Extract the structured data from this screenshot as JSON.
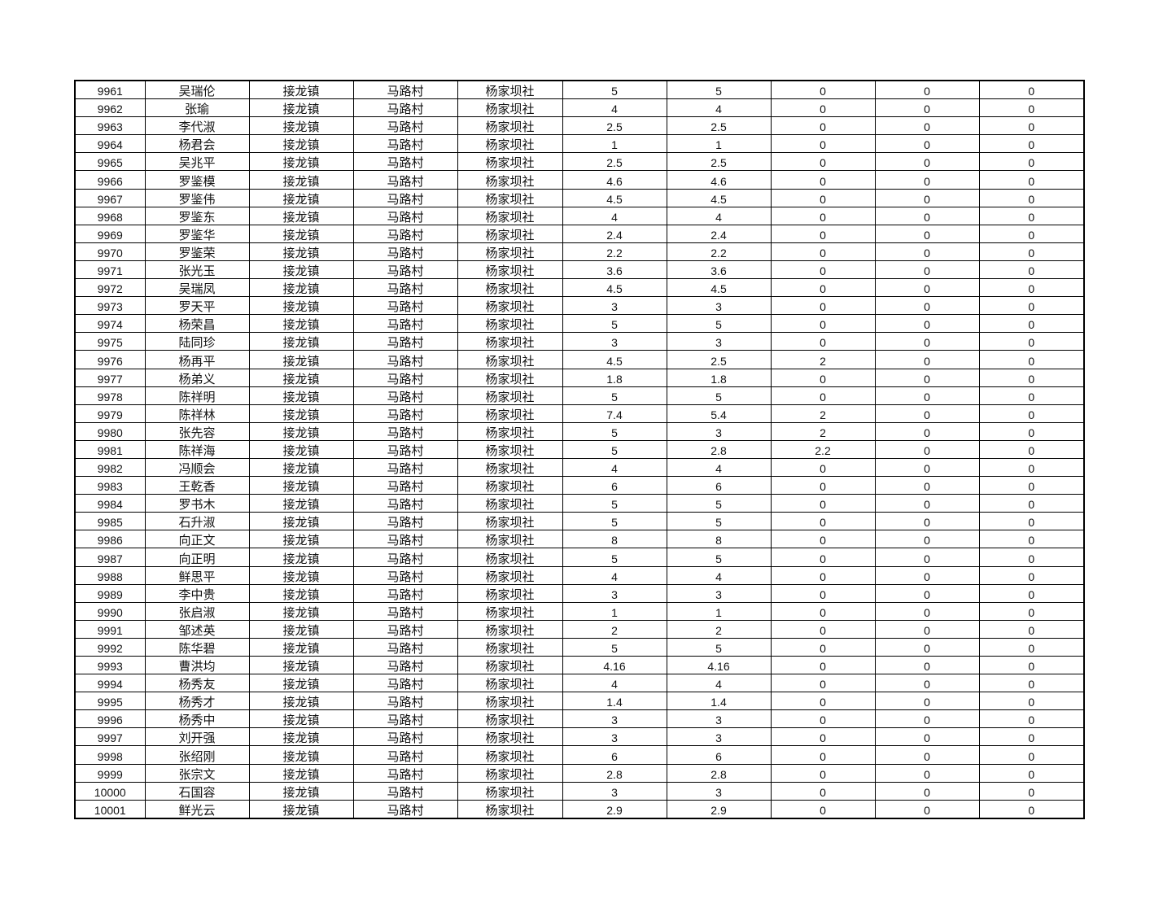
{
  "rows": [
    [
      "9961",
      "吴瑞伦",
      "接龙镇",
      "马路村",
      "杨家坝社",
      "5",
      "5",
      "0",
      "0",
      "0"
    ],
    [
      "9962",
      "张瑜",
      "接龙镇",
      "马路村",
      "杨家坝社",
      "4",
      "4",
      "0",
      "0",
      "0"
    ],
    [
      "9963",
      "李代淑",
      "接龙镇",
      "马路村",
      "杨家坝社",
      "2.5",
      "2.5",
      "0",
      "0",
      "0"
    ],
    [
      "9964",
      "杨君会",
      "接龙镇",
      "马路村",
      "杨家坝社",
      "1",
      "1",
      "0",
      "0",
      "0"
    ],
    [
      "9965",
      "吴兆平",
      "接龙镇",
      "马路村",
      "杨家坝社",
      "2.5",
      "2.5",
      "0",
      "0",
      "0"
    ],
    [
      "9966",
      "罗鉴模",
      "接龙镇",
      "马路村",
      "杨家坝社",
      "4.6",
      "4.6",
      "0",
      "0",
      "0"
    ],
    [
      "9967",
      "罗鉴伟",
      "接龙镇",
      "马路村",
      "杨家坝社",
      "4.5",
      "4.5",
      "0",
      "0",
      "0"
    ],
    [
      "9968",
      "罗鉴东",
      "接龙镇",
      "马路村",
      "杨家坝社",
      "4",
      "4",
      "0",
      "0",
      "0"
    ],
    [
      "9969",
      "罗鉴华",
      "接龙镇",
      "马路村",
      "杨家坝社",
      "2.4",
      "2.4",
      "0",
      "0",
      "0"
    ],
    [
      "9970",
      "罗鉴荣",
      "接龙镇",
      "马路村",
      "杨家坝社",
      "2.2",
      "2.2",
      "0",
      "0",
      "0"
    ],
    [
      "9971",
      "张光玉",
      "接龙镇",
      "马路村",
      "杨家坝社",
      "3.6",
      "3.6",
      "0",
      "0",
      "0"
    ],
    [
      "9972",
      "吴瑞凤",
      "接龙镇",
      "马路村",
      "杨家坝社",
      "4.5",
      "4.5",
      "0",
      "0",
      "0"
    ],
    [
      "9973",
      "罗天平",
      "接龙镇",
      "马路村",
      "杨家坝社",
      "3",
      "3",
      "0",
      "0",
      "0"
    ],
    [
      "9974",
      "杨荣昌",
      "接龙镇",
      "马路村",
      "杨家坝社",
      "5",
      "5",
      "0",
      "0",
      "0"
    ],
    [
      "9975",
      "陆同珍",
      "接龙镇",
      "马路村",
      "杨家坝社",
      "3",
      "3",
      "0",
      "0",
      "0"
    ],
    [
      "9976",
      "杨再平",
      "接龙镇",
      "马路村",
      "杨家坝社",
      "4.5",
      "2.5",
      "2",
      "0",
      "0"
    ],
    [
      "9977",
      "杨弟义",
      "接龙镇",
      "马路村",
      "杨家坝社",
      "1.8",
      "1.8",
      "0",
      "0",
      "0"
    ],
    [
      "9978",
      "陈祥明",
      "接龙镇",
      "马路村",
      "杨家坝社",
      "5",
      "5",
      "0",
      "0",
      "0"
    ],
    [
      "9979",
      "陈祥林",
      "接龙镇",
      "马路村",
      "杨家坝社",
      "7.4",
      "5.4",
      "2",
      "0",
      "0"
    ],
    [
      "9980",
      "张先容",
      "接龙镇",
      "马路村",
      "杨家坝社",
      "5",
      "3",
      "2",
      "0",
      "0"
    ],
    [
      "9981",
      "陈祥海",
      "接龙镇",
      "马路村",
      "杨家坝社",
      "5",
      "2.8",
      "2.2",
      "0",
      "0"
    ],
    [
      "9982",
      "冯顺会",
      "接龙镇",
      "马路村",
      "杨家坝社",
      "4",
      "4",
      "0",
      "0",
      "0"
    ],
    [
      "9983",
      "王乾香",
      "接龙镇",
      "马路村",
      "杨家坝社",
      "6",
      "6",
      "0",
      "0",
      "0"
    ],
    [
      "9984",
      "罗书木",
      "接龙镇",
      "马路村",
      "杨家坝社",
      "5",
      "5",
      "0",
      "0",
      "0"
    ],
    [
      "9985",
      "石升淑",
      "接龙镇",
      "马路村",
      "杨家坝社",
      "5",
      "5",
      "0",
      "0",
      "0"
    ],
    [
      "9986",
      "向正文",
      "接龙镇",
      "马路村",
      "杨家坝社",
      "8",
      "8",
      "0",
      "0",
      "0"
    ],
    [
      "9987",
      "向正明",
      "接龙镇",
      "马路村",
      "杨家坝社",
      "5",
      "5",
      "0",
      "0",
      "0"
    ],
    [
      "9988",
      "鲜思平",
      "接龙镇",
      "马路村",
      "杨家坝社",
      "4",
      "4",
      "0",
      "0",
      "0"
    ],
    [
      "9989",
      "李中贵",
      "接龙镇",
      "马路村",
      "杨家坝社",
      "3",
      "3",
      "0",
      "0",
      "0"
    ],
    [
      "9990",
      "张启淑",
      "接龙镇",
      "马路村",
      "杨家坝社",
      "1",
      "1",
      "0",
      "0",
      "0"
    ],
    [
      "9991",
      "邹述英",
      "接龙镇",
      "马路村",
      "杨家坝社",
      "2",
      "2",
      "0",
      "0",
      "0"
    ],
    [
      "9992",
      "陈华碧",
      "接龙镇",
      "马路村",
      "杨家坝社",
      "5",
      "5",
      "0",
      "0",
      "0"
    ],
    [
      "9993",
      "曹洪均",
      "接龙镇",
      "马路村",
      "杨家坝社",
      "4.16",
      "4.16",
      "0",
      "0",
      "0"
    ],
    [
      "9994",
      "杨秀友",
      "接龙镇",
      "马路村",
      "杨家坝社",
      "4",
      "4",
      "0",
      "0",
      "0"
    ],
    [
      "9995",
      "杨秀才",
      "接龙镇",
      "马路村",
      "杨家坝社",
      "1.4",
      "1.4",
      "0",
      "0",
      "0"
    ],
    [
      "9996",
      "杨秀中",
      "接龙镇",
      "马路村",
      "杨家坝社",
      "3",
      "3",
      "0",
      "0",
      "0"
    ],
    [
      "9997",
      "刘开强",
      "接龙镇",
      "马路村",
      "杨家坝社",
      "3",
      "3",
      "0",
      "0",
      "0"
    ],
    [
      "9998",
      "张绍刚",
      "接龙镇",
      "马路村",
      "杨家坝社",
      "6",
      "6",
      "0",
      "0",
      "0"
    ],
    [
      "9999",
      "张宗文",
      "接龙镇",
      "马路村",
      "杨家坝社",
      "2.8",
      "2.8",
      "0",
      "0",
      "0"
    ],
    [
      "10000",
      "石国容",
      "接龙镇",
      "马路村",
      "杨家坝社",
      "3",
      "3",
      "0",
      "0",
      "0"
    ],
    [
      "10001",
      "鲜光云",
      "接龙镇",
      "马路村",
      "杨家坝社",
      "2.9",
      "2.9",
      "0",
      "0",
      "0"
    ]
  ]
}
